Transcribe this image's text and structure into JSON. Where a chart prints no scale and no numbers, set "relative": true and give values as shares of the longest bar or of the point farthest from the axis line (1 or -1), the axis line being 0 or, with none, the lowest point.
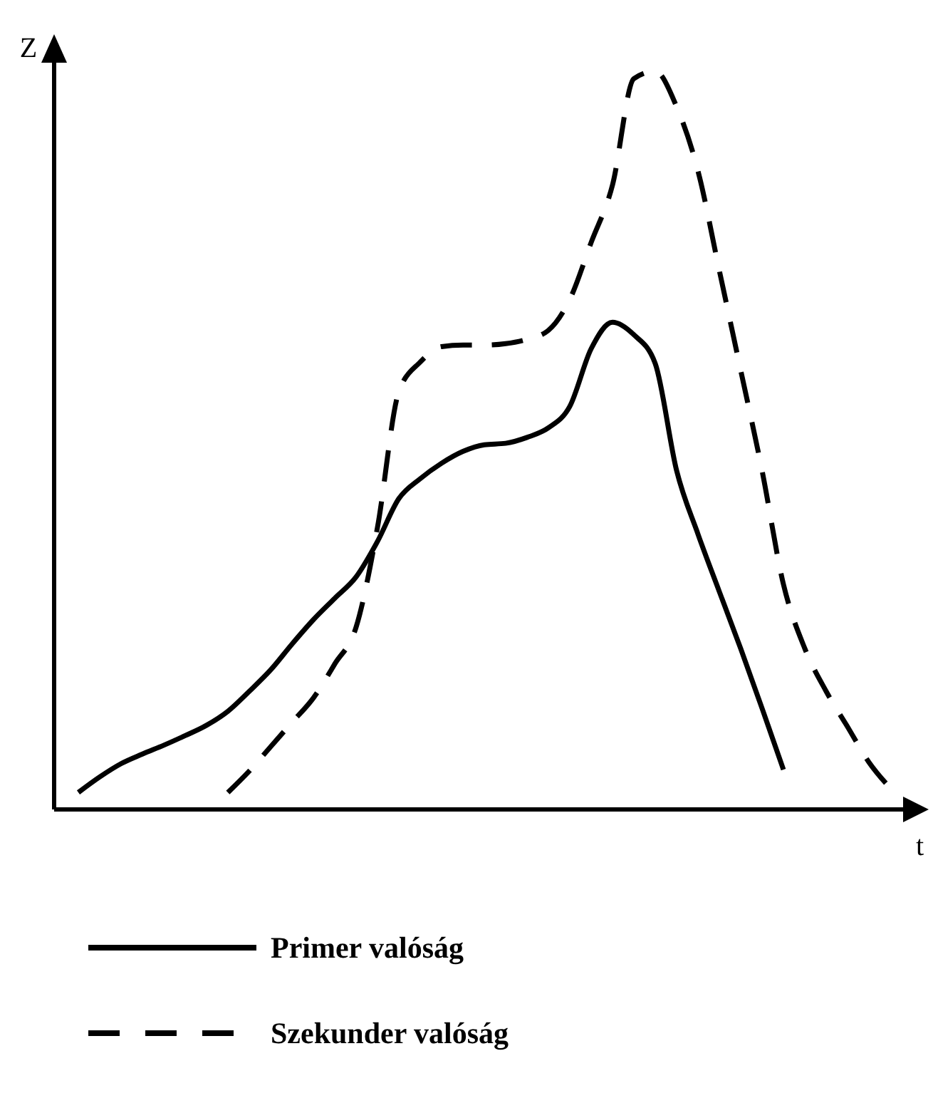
{
  "chart_data": {
    "type": "line",
    "relative": true,
    "xlabel": "t",
    "ylabel": "Z",
    "legend": "bottom",
    "marker": "none",
    "categories": [
      null,
      null,
      null,
      null,
      null,
      null,
      null,
      null,
      null,
      null,
      null,
      null,
      null,
      null,
      null,
      null,
      null,
      null,
      null,
      null,
      null,
      null,
      null,
      null,
      null,
      null,
      null,
      null,
      null,
      null,
      null,
      null,
      null,
      null,
      null,
      null,
      null,
      null,
      null,
      null,
      null
    ],
    "series": [
      {
        "name": "Primer valóság",
        "color": "#000000",
        "line_style": "solid",
        "values": [
          null,
          0.023,
          0.044,
          0.062,
          0.075,
          0.087,
          0.1,
          0.114,
          0.133,
          0.16,
          0.189,
          0.224,
          0.257,
          0.286,
          0.315,
          0.363,
          0.421,
          0.448,
          0.469,
          0.485,
          0.494,
          0.496,
          0.504,
          0.517,
          0.546,
          0.624,
          0.66,
          0.643,
          0.604,
          0.459,
          0.373,
          0.295,
          0.218,
          0.137,
          0.054,
          null,
          null,
          null,
          null,
          null,
          null
        ]
      },
      {
        "name": "Szekunder valóság",
        "color": "#000000",
        "line_style": "dashed",
        "values": [
          null,
          null,
          null,
          null,
          null,
          null,
          null,
          null,
          0.023,
          0.052,
          0.085,
          0.118,
          0.151,
          0.197,
          0.247,
          0.382,
          0.566,
          0.606,
          0.627,
          0.629,
          0.629,
          0.631,
          0.637,
          0.649,
          0.691,
          0.768,
          0.846,
          0.99,
          1.0,
          0.952,
          0.865,
          0.73,
          0.595,
          0.459,
          0.305,
          0.218,
          0.16,
          0.112,
          0.064,
          0.029,
          null
        ]
      }
    ]
  }
}
